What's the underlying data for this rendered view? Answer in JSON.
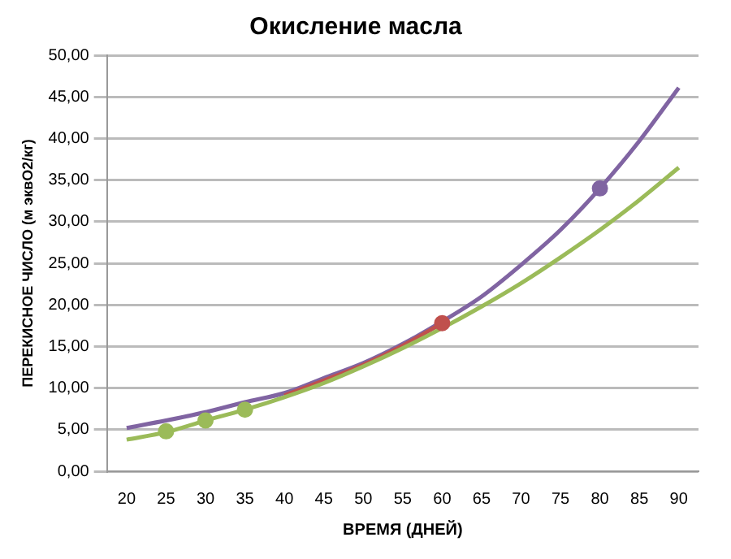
{
  "chart_data": {
    "type": "line",
    "title": "Окисление масла",
    "xlabel": "ВРЕМЯ (ДНЕЙ)",
    "ylabel": "ПЕРЕКИСНОЕ ЧИСЛО (м эквO2/кг)",
    "xlim": [
      17.5,
      92.5
    ],
    "xticks": [
      20,
      25,
      30,
      35,
      40,
      45,
      50,
      55,
      60,
      65,
      70,
      75,
      80,
      85,
      90
    ],
    "ylim": [
      0,
      50
    ],
    "yticks": [
      {
        "value": 0,
        "label": "0,00"
      },
      {
        "value": 5,
        "label": "5,00"
      },
      {
        "value": 10,
        "label": "10,00"
      },
      {
        "value": 15,
        "label": "15,00"
      },
      {
        "value": 20,
        "label": "20,00"
      },
      {
        "value": 25,
        "label": "25,00"
      },
      {
        "value": 30,
        "label": "30,00"
      },
      {
        "value": 35,
        "label": "35,00"
      },
      {
        "value": 40,
        "label": "40,00"
      },
      {
        "value": 45,
        "label": "45,00"
      },
      {
        "value": 50,
        "label": "50,00"
      }
    ],
    "grid": "y",
    "legend": false,
    "series": [
      {
        "marker": "none",
        "color": "#9bbb59",
        "x": [
          20,
          25,
          30,
          35,
          40,
          45,
          50,
          55,
          60,
          65,
          70,
          75,
          80,
          85,
          90
        ],
        "values": [
          3.8,
          4.7,
          6.1,
          7.4,
          8.9,
          10.6,
          12.6,
          14.8,
          17.2,
          19.8,
          22.6,
          25.7,
          29.0,
          32.6,
          36.5
        ]
      },
      {
        "marker": "none",
        "color": "#c0504d",
        "x": [
          40,
          45,
          50,
          55,
          60
        ],
        "values": [
          9.1,
          10.9,
          12.8,
          15.1,
          17.8
        ]
      },
      {
        "marker": "none",
        "color": "#8064a2",
        "x": [
          20,
          25,
          30,
          35,
          40,
          45,
          50,
          55,
          60,
          65,
          70,
          75,
          80,
          85,
          90
        ],
        "values": [
          5.2,
          6.1,
          7.1,
          8.3,
          9.4,
          11.2,
          13.0,
          15.3,
          18.0,
          21.0,
          24.8,
          29.0,
          34.0,
          39.7,
          46.1
        ]
      },
      {
        "type": "scatter",
        "marker": "circle",
        "color": "#9bbb59",
        "x": [
          25,
          30,
          35
        ],
        "values": [
          4.8,
          6.1,
          7.4
        ]
      },
      {
        "type": "scatter",
        "marker": "circle",
        "color": "#c0504d",
        "x": [
          60
        ],
        "values": [
          17.8
        ]
      },
      {
        "type": "scatter",
        "marker": "circle",
        "color": "#8064a2",
        "x": [
          80
        ],
        "values": [
          34.0
        ]
      }
    ]
  }
}
